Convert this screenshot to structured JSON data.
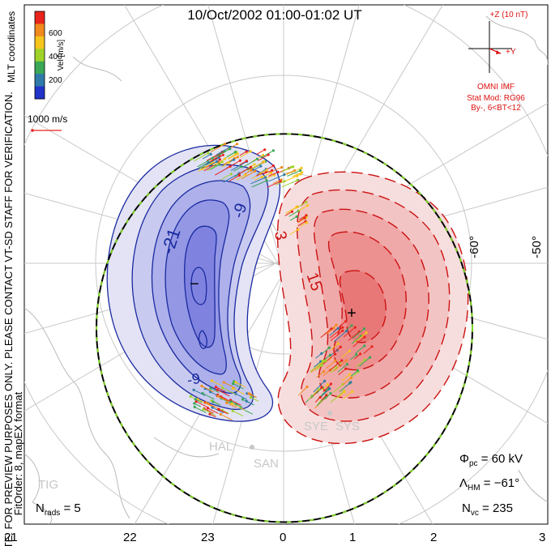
{
  "title": "10/Oct/2002 01:00-01:02 UT",
  "colorbar": {
    "label": "Vel [m/s]",
    "ticks": [
      "600",
      "400",
      "200"
    ],
    "colors": [
      "#e8241c",
      "#f08a1c",
      "#f5c51b",
      "#9fd32a",
      "#3aa857",
      "#2f7aa8",
      "#2133c8"
    ]
  },
  "coord_system": "MLT coordinates",
  "velocity_scale": "1000 m/s",
  "notice": "NOTE: FOR PREVIEW PURPOSES ONLY. PLEASE CONTACT VT-SD STAFF FOR VERIFICATION.",
  "fit_info": "FitOrder: 8, mapEX format",
  "imf": {
    "z_label": "+Z (10 nT)",
    "y_label": "+Y",
    "source": "OMNI IMF",
    "model": "Stat Mod: RG96",
    "condition": "By-, 6<BT<12"
  },
  "latitude_labels": [
    "-60°",
    "-50°"
  ],
  "potential_labels": [
    "-21",
    "-9",
    "-9",
    "3",
    "15"
  ],
  "min_marker": "−",
  "max_marker": "+",
  "stations": [
    "SYE",
    "SYS",
    "HAL",
    "SAN",
    "TIG"
  ],
  "stats": {
    "phi_pc": "Φpc = 60 kV",
    "lambda_hm": "ΛHM = −61°",
    "n_vc": "Nvc = 235",
    "n_rads": "Nrads = 5"
  },
  "stats_parts": {
    "phi_sym": "Φ",
    "phi_sub": "pc",
    "phi_val": " = 60 kV",
    "lam_sym": "Λ",
    "lam_sub": "HM",
    "lam_val": " = −61°",
    "nvc_sym": "N",
    "nvc_sub": "vc",
    "nvc_val": " = 235",
    "nr_sym": "N",
    "nr_sub": "rads",
    "nr_val": " = 5"
  },
  "mlt_axis": [
    "21",
    "22",
    "23",
    "0",
    "1",
    "2",
    "3"
  ],
  "colors": {
    "negative": "#2233bb",
    "positive": "#cc1111",
    "imf": "#dd1111"
  }
}
